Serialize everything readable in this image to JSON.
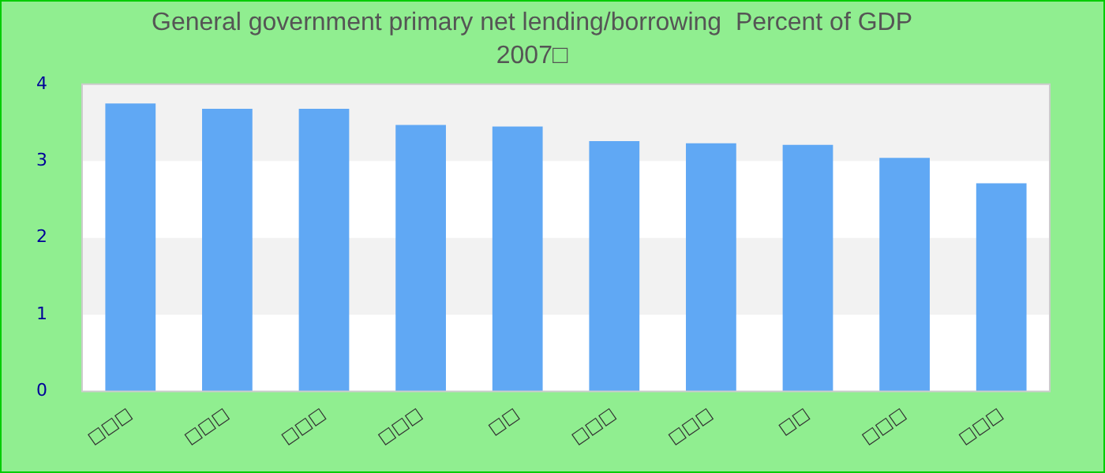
{
  "chart_data": {
    "type": "bar",
    "title": "General government primary net lending/borrowing  Percent of GDP",
    "subtitle": "2007□",
    "categories": [
      "□□□",
      "□□□",
      "□□□",
      "□□□",
      "□□",
      "□□□",
      "□□□",
      "□□",
      "□□□",
      "□□□"
    ],
    "values": [
      3.75,
      3.68,
      3.68,
      3.47,
      3.45,
      3.26,
      3.23,
      3.21,
      3.04,
      2.71
    ],
    "color": "#60a8f4",
    "ylim": [
      0,
      4
    ],
    "yticks": [
      0,
      1,
      2,
      3,
      4
    ],
    "bands": [
      {
        "axis": "y",
        "from": 1,
        "to": 2,
        "color": "#f2f2f2"
      },
      {
        "axis": "y",
        "from": 3,
        "to": 4,
        "color": "#f2f2f2"
      }
    ],
    "legend": false
  }
}
